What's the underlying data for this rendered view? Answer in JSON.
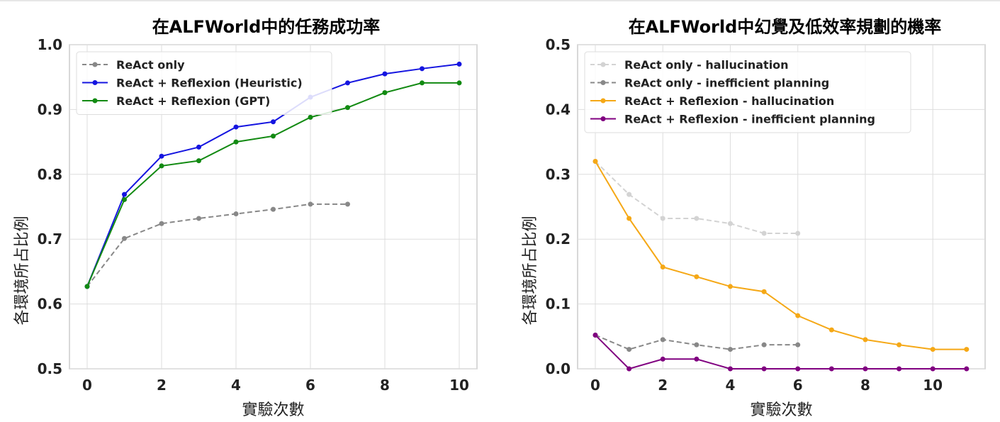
{
  "chart_data": [
    {
      "type": "line",
      "title": "在ALFWorld中的任務成功率",
      "xlabel": "實驗次數",
      "ylabel": "各環境所占比例",
      "xlim": [
        -0.476,
        10.476
      ],
      "ylim": [
        0.5,
        1.0
      ],
      "xticks": [
        0,
        2,
        4,
        6,
        8,
        10
      ],
      "yticks": [
        0.5,
        0.6,
        0.7,
        0.8,
        0.9,
        1.0
      ],
      "grid": true,
      "legend_position": "top-left",
      "series": [
        {
          "name": "ReAct only",
          "color": "#888888",
          "dashed": true,
          "x": [
            0,
            1,
            2,
            3,
            4,
            5,
            6,
            7
          ],
          "values": [
            0.627,
            0.701,
            0.724,
            0.732,
            0.739,
            0.746,
            0.754,
            0.754
          ]
        },
        {
          "name": "ReAct + Reflexion (Heuristic)",
          "color": "#1515e0",
          "dashed": false,
          "x": [
            0,
            1,
            2,
            3,
            4,
            5,
            6,
            7,
            8,
            9,
            10
          ],
          "values": [
            0.627,
            0.769,
            0.828,
            0.842,
            0.873,
            0.881,
            0.919,
            0.941,
            0.955,
            0.963,
            0.97
          ]
        },
        {
          "name": "ReAct + Reflexion (GPT)",
          "color": "#128a12",
          "dashed": false,
          "x": [
            0,
            1,
            2,
            3,
            4,
            5,
            6,
            7,
            8,
            9,
            10
          ],
          "values": [
            0.627,
            0.761,
            0.813,
            0.821,
            0.85,
            0.859,
            0.888,
            0.903,
            0.926,
            0.941,
            0.941
          ]
        }
      ]
    },
    {
      "type": "line",
      "title": "在ALFWorld中幻覺及低效率規劃的機率",
      "xlabel": "實驗次數",
      "ylabel": "各環境所占比例",
      "xlim": [
        -0.525,
        11.55
      ],
      "ylim": [
        0.0,
        0.5
      ],
      "xticks": [
        0,
        2,
        4,
        6,
        8,
        10
      ],
      "yticks": [
        0.0,
        0.1,
        0.2,
        0.3,
        0.4,
        0.5
      ],
      "grid": true,
      "legend_position": "top-left",
      "series": [
        {
          "name": "ReAct only - hallucination",
          "color": "#d3d3d3",
          "dashed": true,
          "x": [
            0,
            1,
            2,
            3,
            4,
            5,
            6
          ],
          "values": [
            0.32,
            0.269,
            0.232,
            0.232,
            0.224,
            0.209,
            0.209
          ]
        },
        {
          "name": "ReAct only - inefficient planning",
          "color": "#888888",
          "dashed": true,
          "x": [
            0,
            1,
            2,
            3,
            4,
            5,
            6
          ],
          "values": [
            0.052,
            0.03,
            0.045,
            0.037,
            0.03,
            0.037,
            0.037
          ]
        },
        {
          "name": "ReAct + Reflexion - hallucination",
          "color": "#f5a816",
          "dashed": false,
          "x": [
            0,
            1,
            2,
            3,
            4,
            5,
            6,
            7,
            8,
            9,
            10,
            11
          ],
          "values": [
            0.32,
            0.232,
            0.157,
            0.142,
            0.127,
            0.119,
            0.082,
            0.06,
            0.045,
            0.037,
            0.03,
            0.03
          ]
        },
        {
          "name": "ReAct + Reflexion - inefficient planning",
          "color": "#800080",
          "dashed": false,
          "x": [
            0,
            1,
            2,
            3,
            4,
            5,
            6,
            7,
            8,
            9,
            10,
            11
          ],
          "values": [
            0.052,
            0,
            0.015,
            0.015,
            0,
            0,
            0,
            0,
            0,
            0,
            0,
            0
          ]
        }
      ]
    }
  ]
}
